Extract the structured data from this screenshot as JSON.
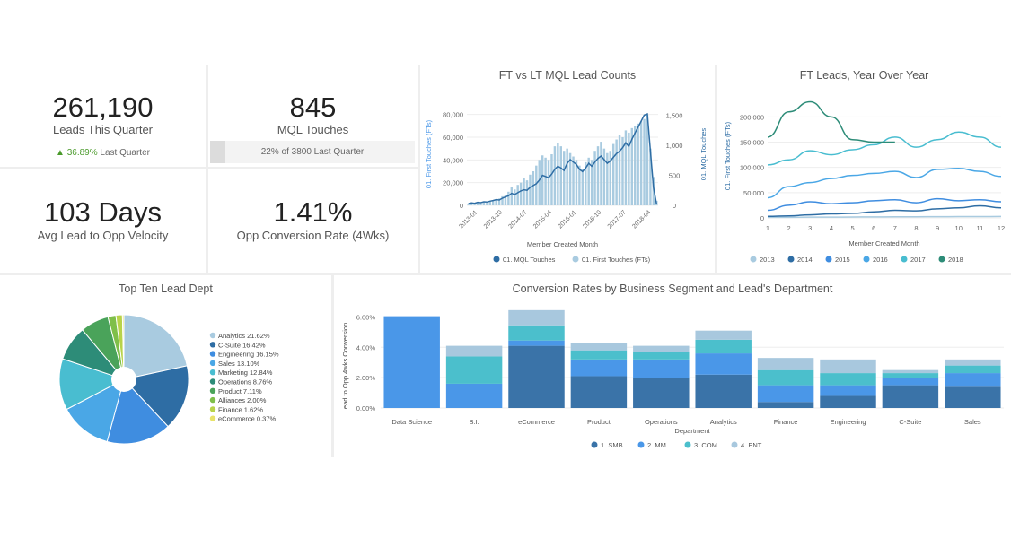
{
  "kpis": {
    "leads": {
      "value": "261,190",
      "label": "Leads This Quarter",
      "change": "▲ 36.89%",
      "change_suffix": "Last Quarter"
    },
    "mql": {
      "value": "845",
      "label": "MQL Touches",
      "pct_text": "22% of 3800 Last Quarter",
      "progress": 0.22
    },
    "velocity": {
      "value": "103 Days",
      "label": "Avg Lead to Opp Velocity"
    },
    "conversion": {
      "value": "1.41%",
      "label": "Opp Conversion Rate (4Wks)"
    }
  },
  "colors": {
    "accent": "#2e6da4",
    "smb": "#3a73a8",
    "mm": "#4a97e8",
    "com": "#4bbfcc",
    "ent": "#a8c8de",
    "positive": "#4a9a2b"
  },
  "chart_data": [
    {
      "type": "bar+line",
      "title": "FT vs LT MQL Lead Counts",
      "xlabel": "Member Created Month",
      "ylabel": "01. First Touches (FTs)",
      "y2label": "01. MQL Touches",
      "x_ticks": [
        "2013-01",
        "2013-10",
        "2014-07",
        "2015-04",
        "2016-01",
        "2016-10",
        "2017-07",
        "2018-04"
      ],
      "y_ticks": [
        "0",
        "20,000",
        "40,000",
        "60,000",
        "80,000"
      ],
      "y2_ticks": [
        "0",
        "500",
        "1,000",
        "1,500"
      ],
      "ylim": [
        0,
        90000
      ],
      "y2lim": [
        0,
        1700
      ],
      "series": [
        {
          "name": "01. MQL Touches",
          "kind": "line",
          "values": [
            30,
            40,
            35,
            50,
            45,
            60,
            55,
            70,
            80,
            95,
            90,
            120,
            140,
            160,
            200,
            180,
            210,
            240,
            260,
            250,
            300,
            330,
            360,
            420,
            500,
            480,
            460,
            520,
            600,
            650,
            620,
            580,
            700,
            760,
            720,
            680,
            600,
            560,
            620,
            700,
            650,
            720,
            780,
            820,
            760,
            700,
            740,
            800,
            860,
            900,
            960,
            1040,
            980,
            1100,
            1200,
            1300,
            1400,
            1500,
            1520,
            900,
            300,
            20
          ]
        },
        {
          "name": "01. First Touches (FTs)",
          "kind": "bar",
          "values": [
            1000,
            1500,
            1200,
            2000,
            1800,
            2500,
            2300,
            3500,
            4000,
            5000,
            6000,
            8000,
            9000,
            12000,
            16000,
            14000,
            18000,
            20000,
            24000,
            22000,
            27000,
            30000,
            35000,
            40000,
            44000,
            42000,
            40000,
            45000,
            52000,
            55000,
            52000,
            48000,
            50000,
            46000,
            43000,
            40000,
            35000,
            32000,
            38000,
            42000,
            40000,
            48000,
            52000,
            56000,
            50000,
            46000,
            48000,
            54000,
            58000,
            62000,
            60000,
            66000,
            64000,
            68000,
            70000,
            72000,
            74000,
            76000,
            80000,
            50000,
            25000,
            4000
          ]
        }
      ]
    },
    {
      "type": "line",
      "title": "FT Leads, Year Over Year",
      "xlabel": "Member Created Month",
      "ylabel": "01. First Touches (FTs)",
      "categories": [
        "1",
        "2",
        "3",
        "4",
        "5",
        "6",
        "7",
        "8",
        "9",
        "10",
        "11",
        "12"
      ],
      "y_ticks": [
        "0",
        "50,000",
        "100,000",
        "150,000",
        "200,000"
      ],
      "ylim": [
        0,
        245000
      ],
      "series": [
        {
          "name": "2013",
          "values": [
            1000,
            1200,
            1500,
            1500,
            1800,
            2000,
            2200,
            2300,
            2500,
            2600,
            2700,
            2800
          ]
        },
        {
          "name": "2014",
          "values": [
            3000,
            4000,
            6000,
            8000,
            9000,
            12000,
            15000,
            14000,
            18000,
            20000,
            24000,
            20000
          ]
        },
        {
          "name": "2015",
          "values": [
            15000,
            25000,
            32000,
            28000,
            30000,
            34000,
            36000,
            30000,
            38000,
            34000,
            36000,
            32000
          ]
        },
        {
          "name": "2016",
          "values": [
            40000,
            62000,
            70000,
            78000,
            84000,
            88000,
            92000,
            80000,
            96000,
            98000,
            92000,
            82000
          ]
        },
        {
          "name": "2017",
          "values": [
            105000,
            115000,
            133000,
            125000,
            135000,
            145000,
            160000,
            140000,
            155000,
            170000,
            160000,
            140000
          ]
        },
        {
          "name": "2018",
          "values": [
            160000,
            210000,
            230000,
            200000,
            155000,
            150000,
            150000,
            null,
            null,
            null,
            null,
            null
          ]
        }
      ]
    },
    {
      "type": "pie",
      "title": "Top Ten Lead Dept",
      "slices": [
        {
          "label": "Analytics 21.62%",
          "value": 21.62,
          "color": "#a9cbe0"
        },
        {
          "label": "C-Suite 16.42%",
          "value": 16.42,
          "color": "#2e6da4"
        },
        {
          "label": "Engineering 16.15%",
          "value": 16.15,
          "color": "#3f8de0"
        },
        {
          "label": "Sales 13.10%",
          "value": 13.1,
          "color": "#4aa7e6"
        },
        {
          "label": "Marketing 12.84%",
          "value": 12.84,
          "color": "#49bdd0"
        },
        {
          "label": "Operations 8.76%",
          "value": 8.76,
          "color": "#2d8c78"
        },
        {
          "label": "Product 7.11%",
          "value": 7.11,
          "color": "#4aa35a"
        },
        {
          "label": "Alliances 2.00%",
          "value": 2.0,
          "color": "#7fbf4a"
        },
        {
          "label": "Finance 1.62%",
          "value": 1.62,
          "color": "#b8d34a"
        },
        {
          "label": "eCommerce 0.37%",
          "value": 0.37,
          "color": "#e8e36a"
        }
      ]
    },
    {
      "type": "bar",
      "stacked": true,
      "title": "Conversion Rates by Business Segment and Lead's Department",
      "xlabel": "Department",
      "ylabel": "Lead to Opp 4wks Conversion",
      "categories": [
        "Data Science",
        "B.I.",
        "eCommerce",
        "Product",
        "Operations",
        "Analytics",
        "Finance",
        "Engineering",
        "C-Suite",
        "Sales"
      ],
      "y_ticks": [
        "0.00%",
        "2.00%",
        "4.00%",
        "6.00%"
      ],
      "ylim": [
        0,
        6.5
      ],
      "series": [
        {
          "name": "1. SMB",
          "values": [
            0,
            0,
            4.1,
            2.1,
            2.0,
            2.2,
            0.4,
            0.8,
            1.5,
            1.4
          ]
        },
        {
          "name": "2. MM",
          "values": [
            6.05,
            1.6,
            0.35,
            1.1,
            1.2,
            1.4,
            1.1,
            0.7,
            0.5,
            0.9
          ]
        },
        {
          "name": "3. COM",
          "values": [
            0,
            1.8,
            1.0,
            0.6,
            0.5,
            0.9,
            1.0,
            0.8,
            0.3,
            0.5
          ]
        },
        {
          "name": "4. ENT",
          "values": [
            0,
            0.7,
            1.0,
            0.5,
            0.4,
            0.6,
            0.8,
            0.9,
            0.2,
            0.4
          ]
        }
      ]
    }
  ]
}
